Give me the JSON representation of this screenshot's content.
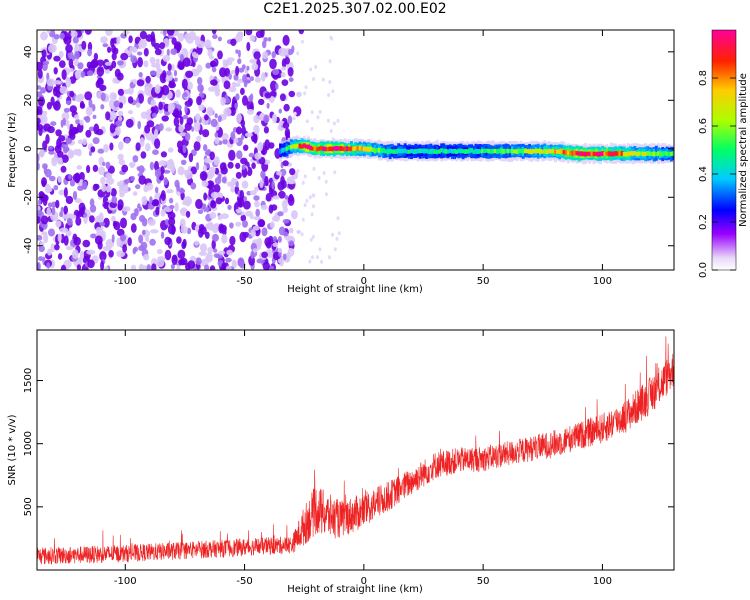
{
  "title": "C2E1.2025.307.02.00.E02",
  "chart_data": [
    {
      "type": "heatmap",
      "xlabel": "Height of straight line (km)",
      "ylabel": "Frequency (Hz)",
      "xlim": [
        -137,
        130
      ],
      "ylim": [
        -50,
        49
      ],
      "x_ticks": [
        -100,
        -50,
        0,
        50,
        100
      ],
      "y_ticks": [
        -40,
        -20,
        0,
        20,
        40
      ],
      "colorbar": {
        "label": "Normalized spectral amplitude",
        "range": [
          0,
          1
        ],
        "ticks": [
          0.0,
          0.2,
          0.4,
          0.6,
          0.8
        ],
        "tick_labels": [
          "0.0",
          "0.2",
          "0.4",
          "0.6",
          "0.8"
        ]
      },
      "noise_region_x": [
        -137,
        -30
      ],
      "signal_ridge": {
        "x": [
          -35,
          -30,
          -25,
          -20,
          -10,
          0,
          10,
          20,
          30,
          40,
          50,
          60,
          70,
          80,
          90,
          100,
          110,
          120,
          130
        ],
        "frequency": [
          -1,
          1,
          1,
          0,
          0,
          0,
          -1,
          -1,
          -1,
          -1,
          -1,
          -1,
          -1,
          -1,
          -2,
          -2,
          -2,
          -2,
          -2
        ],
        "amplitude": [
          0.35,
          0.6,
          0.95,
          0.9,
          0.95,
          0.7,
          0.5,
          0.45,
          0.45,
          0.45,
          0.5,
          0.55,
          0.6,
          0.7,
          0.95,
          0.9,
          0.75,
          0.6,
          0.5
        ]
      }
    },
    {
      "type": "line",
      "xlabel": "Height of straight line (km)",
      "ylabel": "SNR (10 * v/v)",
      "xlim": [
        -137,
        130
      ],
      "ylim": [
        0,
        1900
      ],
      "x_ticks": [
        -100,
        -50,
        0,
        50,
        100
      ],
      "y_ticks": [
        500,
        1000,
        1500
      ],
      "series": [
        {
          "color": "#ee2222",
          "x": [
            -137,
            -100,
            -50,
            -30,
            -25,
            -20,
            -15,
            -10,
            0,
            10,
            20,
            30,
            40,
            50,
            60,
            70,
            80,
            90,
            100,
            110,
            120,
            125,
            130
          ],
          "y": [
            110,
            130,
            180,
            200,
            350,
            480,
            430,
            400,
            470,
            580,
            700,
            830,
            870,
            880,
            920,
            960,
            1000,
            1060,
            1120,
            1220,
            1380,
            1480,
            1600
          ],
          "noise": [
            70,
            70,
            70,
            70,
            160,
            200,
            180,
            150,
            140,
            120,
            110,
            110,
            100,
            100,
            100,
            100,
            110,
            110,
            120,
            130,
            150,
            150,
            150
          ]
        }
      ]
    }
  ]
}
